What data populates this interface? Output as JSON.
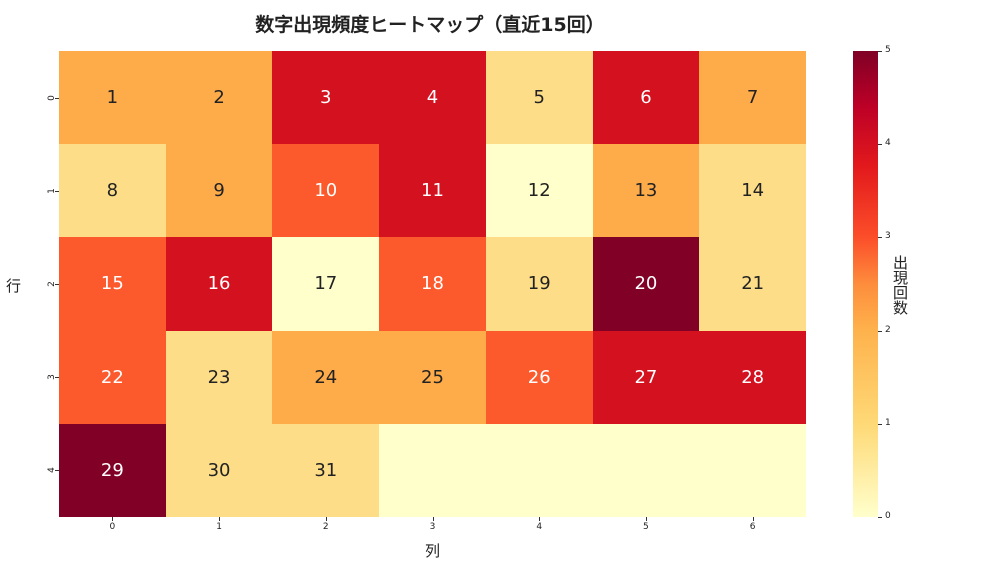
{
  "chart_data": {
    "type": "heatmap",
    "title": "数字出現頻度ヒートマップ（直近15回）",
    "xlabel": "列",
    "ylabel": "行",
    "x_ticks": [
      "0",
      "1",
      "2",
      "3",
      "4",
      "5",
      "6"
    ],
    "y_ticks": [
      "0",
      "1",
      "2",
      "3",
      "4"
    ],
    "colorbar": {
      "label": "出現回数",
      "ticks": [
        "0",
        "1",
        "2",
        "3",
        "4",
        "5"
      ],
      "range": [
        0,
        5
      ],
      "colormap": "YlOrRd"
    },
    "annotations": [
      [
        "1",
        "2",
        "3",
        "4",
        "5",
        "6",
        "7"
      ],
      [
        "8",
        "9",
        "10",
        "11",
        "12",
        "13",
        "14"
      ],
      [
        "15",
        "16",
        "17",
        "18",
        "19",
        "20",
        "21"
      ],
      [
        "22",
        "23",
        "24",
        "25",
        "26",
        "27",
        "28"
      ],
      [
        "29",
        "30",
        "31",
        "",
        "",
        "",
        ""
      ]
    ],
    "values": [
      [
        2,
        2,
        4,
        4,
        1,
        4,
        2
      ],
      [
        1,
        2,
        3,
        4,
        0,
        2,
        1
      ],
      [
        3,
        4,
        0,
        3,
        1,
        5,
        1
      ],
      [
        3,
        1,
        2,
        2,
        3,
        4,
        4
      ],
      [
        5,
        1,
        1,
        0,
        0,
        0,
        0
      ]
    ]
  },
  "colors": {
    "0": "#ffffcc",
    "1": "#fedd88",
    "2": "#feab4a",
    "3": "#fc5a2d",
    "4": "#d3111f",
    "5": "#800026"
  }
}
